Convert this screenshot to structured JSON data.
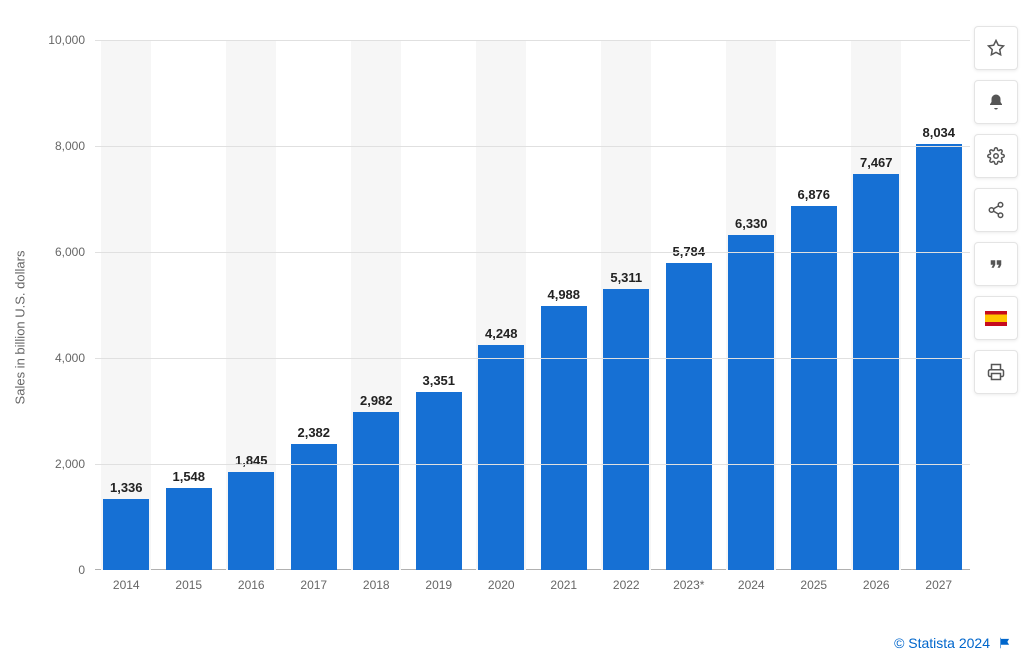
{
  "chart": {
    "type": "bar",
    "ylabel": "Sales in billion U.S. dollars",
    "label_fontsize": 13,
    "label_color": "#666666",
    "data_label_fontsize": 13,
    "data_label_color": "#222222",
    "tick_fontsize": 12,
    "tick_color": "#666666",
    "ylim": [
      0,
      10000
    ],
    "yticks": [
      {
        "value": 0,
        "label": "0"
      },
      {
        "value": 2000,
        "label": "2,000"
      },
      {
        "value": 4000,
        "label": "4,000"
      },
      {
        "value": 6000,
        "label": "6,000"
      },
      {
        "value": 8000,
        "label": "8,000"
      },
      {
        "value": 10000,
        "label": "10,000"
      }
    ],
    "background_color": "#ffffff",
    "bar_bg_color": "#f6f6f6",
    "grid_color": "#e0e0e0",
    "axis_color": "#b0b0b0",
    "bar_color": "#1670d4",
    "bar_width": 0.74,
    "categories": [
      "2014",
      "2015",
      "2016",
      "2017",
      "2018",
      "2019",
      "2020",
      "2021",
      "2022",
      "2023*",
      "2024",
      "2025",
      "2026",
      "2027"
    ],
    "values": [
      1336,
      1548,
      1845,
      2382,
      2982,
      3351,
      4248,
      4988,
      5311,
      5784,
      6330,
      6876,
      7467,
      8034
    ],
    "value_labels": [
      "1,336",
      "1,548",
      "1,845",
      "2,382",
      "2,982",
      "3,351",
      "4,248",
      "4,988",
      "5,311",
      "5,784",
      "6,330",
      "6,876",
      "7,467",
      "8,034"
    ]
  },
  "toolbar": {
    "items": [
      {
        "name": "star-icon"
      },
      {
        "name": "bell-icon"
      },
      {
        "name": "gear-icon"
      },
      {
        "name": "share-icon"
      },
      {
        "name": "quote-icon"
      },
      {
        "name": "flag-es-icon"
      },
      {
        "name": "print-icon"
      }
    ]
  },
  "attribution": {
    "text": "© Statista 2024",
    "color": "#0066cc",
    "fontsize": 14
  }
}
